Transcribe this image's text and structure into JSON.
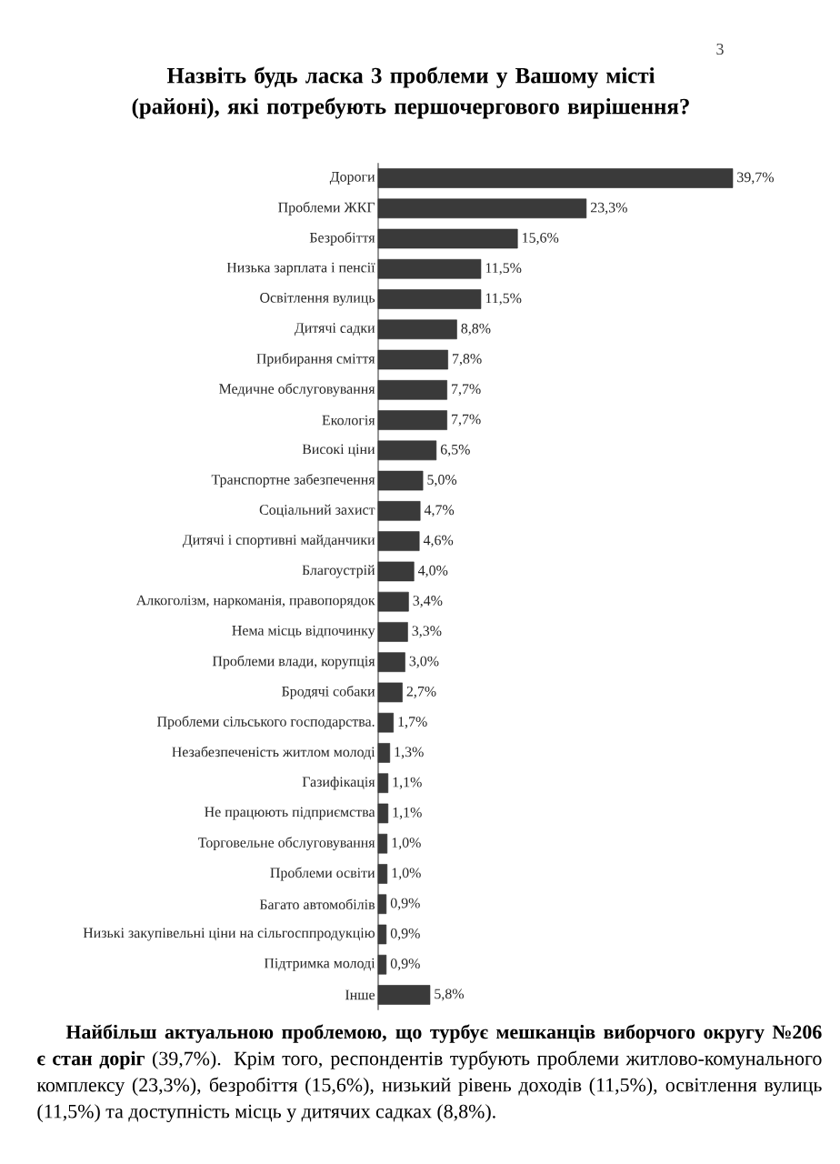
{
  "chart_data": {
    "type": "bar",
    "orientation": "horizontal",
    "title": "Назвіть будь ласка 3 проблеми у Вашому місті (районі), які потребують першочергового вирішення?",
    "categories": [
      "Дороги",
      "Проблеми ЖКГ",
      "Безробіття",
      "Низька зарплата і пенсії",
      "Освітлення вулиць",
      "Дитячі садки",
      "Прибирання сміття",
      "Медичне обслуговування",
      "Екологія",
      "Високі ціни",
      "Транспортне забезпечення",
      "Соціальний захист",
      "Дитячі і спортивні майданчики",
      "Благоустрій",
      "Алкоголізм, наркоманія, правопорядок",
      "Нема місць відпочинку",
      "Проблеми влади, корупція",
      "Бродячі собаки",
      "Проблеми сільського господарства.",
      "Незабезпеченість житлом молоді",
      "Газифікація",
      "Не працюють підприємства",
      "Торговельне обслуговування",
      "Проблеми освіти",
      "Багато автомобілів",
      "Низькі закупівельні ціни на сільгосппродукцію",
      "Підтримка молоді",
      "Інше"
    ],
    "values": [
      39.7,
      23.3,
      15.6,
      11.5,
      11.5,
      8.8,
      7.8,
      7.7,
      7.7,
      6.5,
      5.0,
      4.7,
      4.6,
      4.0,
      3.4,
      3.3,
      3.0,
      2.7,
      1.7,
      1.3,
      1.1,
      1.1,
      1.0,
      1.0,
      0.9,
      0.9,
      0.9,
      5.8
    ],
    "value_labels": [
      "39,7%",
      "23,3%",
      "15,6%",
      "11,5%",
      "11,5%",
      "8,8%",
      "7,8%",
      "7,7%",
      "7,7%",
      "6,5%",
      "5,0%",
      "4,7%",
      "4,6%",
      "4,0%",
      "3,4%",
      "3,3%",
      "3,0%",
      "2,7%",
      "1,7%",
      "1,3%",
      "1,1%",
      "1,1%",
      "1,0%",
      "1,0%",
      "0,9%",
      "0,9%",
      "0,9%",
      "5,8%"
    ],
    "color": "#3a3a3a",
    "annotations": [
      "3",
      "**Найбільш актуальною проблемою, що турбує мешканців виборчого округу №206 є стан доріг** (39,7%). Крім того, респондентів турбують проблеми житлово-комунального комплексу (23,3%), безробіття (15,6%), низький рівень доходів (11,5%), освітлення вулиць (11,5%) та доступність місць у дитячих садках (8,8%)."
    ]
  }
}
